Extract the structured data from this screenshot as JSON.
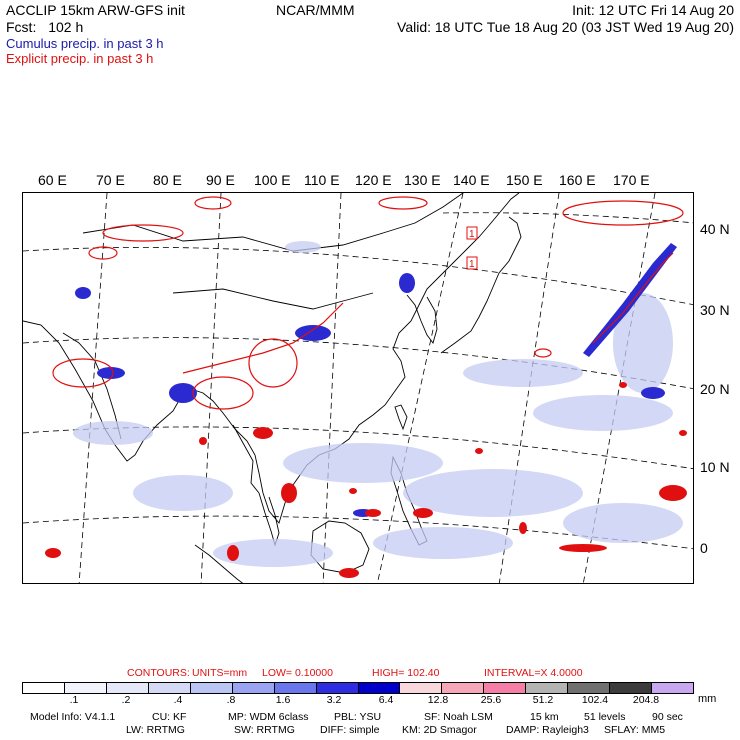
{
  "header": {
    "model_line": "ACCLIP 15km ARW-GFS init",
    "fcst_label": "Fcst:",
    "fcst_value": "102 h",
    "center": "NCAR/MMM",
    "init": "Init: 12 UTC Fri 14 Aug 20",
    "valid": "Valid: 18 UTC Tue 18 Aug 20 (03 JST Wed 19 Aug 20)",
    "legend_cumulus": "Cumulus precip. in past 3 h",
    "legend_explicit": "Explicit precip. in past 3 h",
    "legend_cumulus_color": "#1a1aa8",
    "legend_explicit_color": "#e01010"
  },
  "map": {
    "lon_labels": [
      "60 E",
      "70 E",
      "80 E",
      "90 E",
      "100 E",
      "110 E",
      "120 E",
      "130 E",
      "140 E",
      "150 E",
      "160 E",
      "170 E"
    ],
    "lat_labels": [
      "40 N",
      "30 N",
      "20 N",
      "10 N",
      "0"
    ],
    "box_labels": [
      "1",
      "1"
    ]
  },
  "contours": {
    "label": "CONTOURS:",
    "units": "UNITS=mm",
    "low": "LOW= 0.10000",
    "high": "HIGH= 102.40",
    "interval": "INTERVAL=X  4.0000"
  },
  "colorbar": {
    "colors": [
      "#ffffff",
      "#f2f4fc",
      "#e4e8f8",
      "#d4daf6",
      "#bcc6f4",
      "#9aa4f2",
      "#6a76ec",
      "#2e2ee0",
      "#0000cc",
      "#f8d8dc",
      "#f6a8b8",
      "#f47ea6",
      "#b4b4b4",
      "#707070",
      "#3c3c3c",
      "#c8a8f0"
    ],
    "ticks": [
      ".1",
      ".2",
      ".4",
      ".8",
      "1.6",
      "3.2",
      "6.4",
      "12.8",
      "25.6",
      "51.2",
      "102.4",
      "204.8"
    ],
    "units": "mm"
  },
  "footer": {
    "model_info": "Model Info: V4.1.1",
    "cu": "CU: KF",
    "mp": "MP: WDM 6class",
    "pbl": "PBL: YSU",
    "sf": "SF: Noah LSM",
    "res": "15 km",
    "levels": "51 levels",
    "dt": "90 sec",
    "lw": "LW: RRTMG",
    "sw": "SW: RRTMG",
    "diff": "DIFF: simple",
    "km": "KM: 2D Smagor",
    "damp": "DAMP: Rayleigh3",
    "sflay": "SFLAY: MM5"
  }
}
